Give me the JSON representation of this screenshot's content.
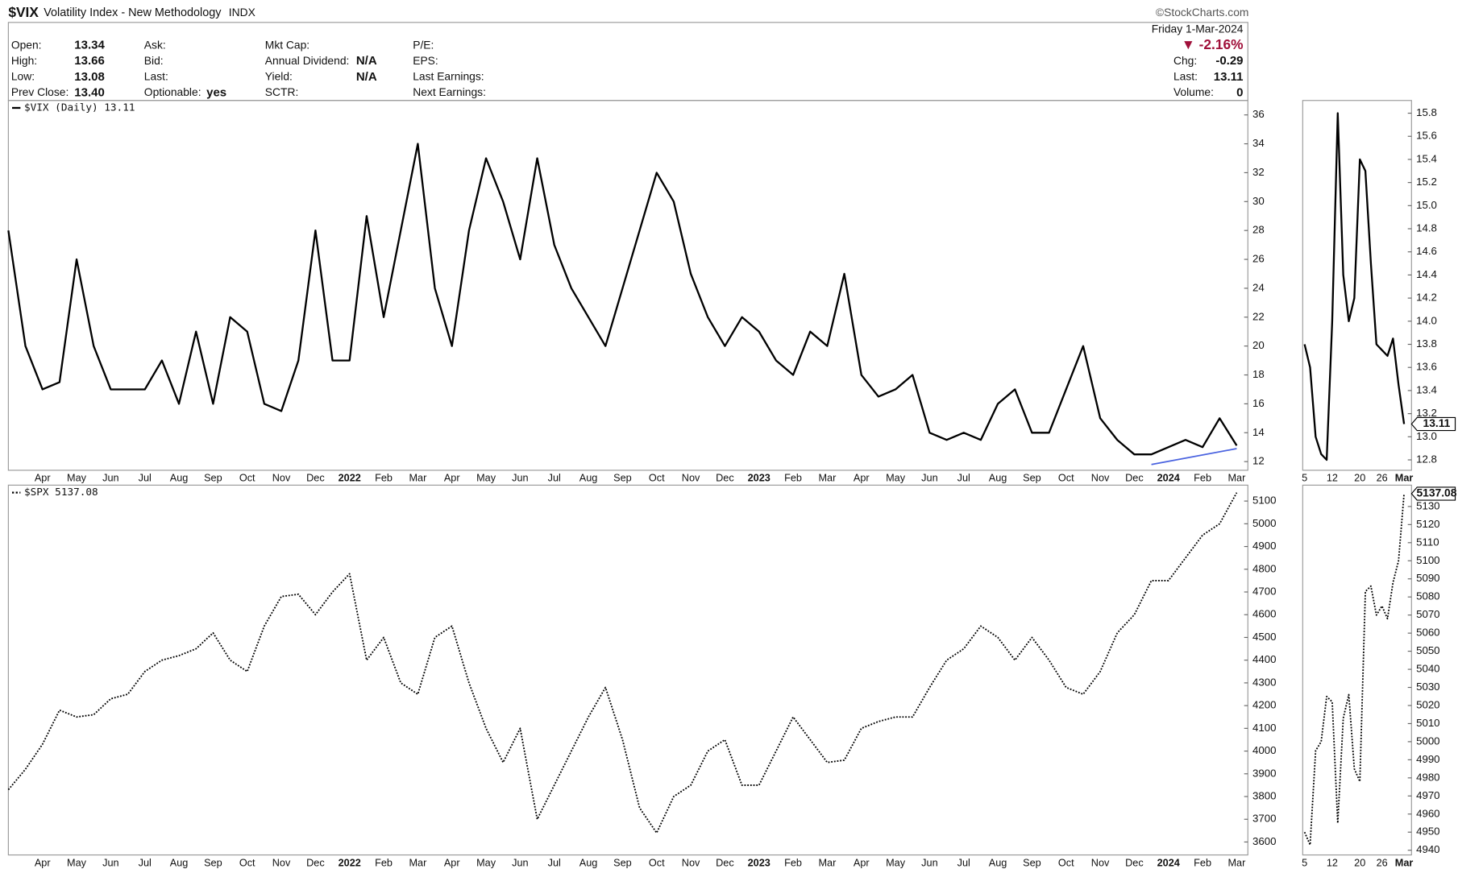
{
  "header": {
    "symbol": "$VIX",
    "name": "Volatility Index - New Methodology",
    "exchange": "INDX",
    "source": "©StockCharts.com",
    "date": "Friday  1-Mar-2024",
    "change_pct": "▼ -2.16%",
    "columns": [
      [
        [
          "Open:",
          "13.34"
        ],
        [
          "High:",
          "13.66"
        ],
        [
          "Low:",
          "13.08"
        ],
        [
          "Prev Close:",
          "13.40"
        ]
      ],
      [
        [
          "Ask:"
        ],
        [
          "Bid:"
        ],
        [
          "Last:"
        ],
        [
          "Optionable:",
          "yes"
        ]
      ],
      [
        [
          "Mkt Cap:"
        ],
        [
          "Annual Dividend:",
          "N/A"
        ],
        [
          "Yield:",
          "N/A"
        ],
        [
          "SCTR:"
        ]
      ],
      [
        [
          "P/E:"
        ],
        [
          "EPS:"
        ],
        [
          "Last Earnings:"
        ],
        [
          "Next Earnings:"
        ]
      ]
    ],
    "right": [
      [
        "Chg:",
        "-0.29"
      ],
      [
        "Last:",
        "13.11"
      ],
      [
        "Volume:",
        "0"
      ]
    ]
  },
  "chart_data": [
    {
      "type": "line",
      "legend": true,
      "categories": [
        null,
        null,
        "Apr",
        null,
        "May",
        null,
        "Jun",
        null,
        "Jul",
        null,
        "Aug",
        null,
        "Sep",
        null,
        "Oct",
        null,
        "Nov",
        null,
        "Dec",
        null,
        "2022",
        null,
        "Feb",
        null,
        "Mar",
        null,
        "Apr",
        null,
        "May",
        null,
        "Jun",
        null,
        "Jul",
        null,
        "Aug",
        null,
        "Sep",
        null,
        "Oct",
        null,
        "Nov",
        null,
        "Dec",
        null,
        "2023",
        null,
        "Feb",
        null,
        "Mar",
        null,
        "Apr",
        null,
        "May",
        null,
        "Jun",
        null,
        "Jul",
        null,
        "Aug",
        null,
        "Sep",
        null,
        "Oct",
        null,
        "Nov",
        null,
        "Dec",
        null,
        "2024",
        null,
        "Feb",
        null,
        "Mar"
      ],
      "series": [
        {
          "name": "$VIX (Daily) 13.11",
          "color": "#000000",
          "line_style": "solid",
          "values": [
            28,
            20,
            17,
            17.5,
            26,
            20,
            17,
            17,
            17,
            19,
            16,
            21,
            16,
            22,
            21,
            16,
            15.5,
            19,
            28,
            19,
            19,
            29,
            22,
            28,
            34,
            24,
            20,
            28,
            33,
            30,
            26,
            33,
            27,
            24,
            22,
            20,
            24,
            28,
            32,
            30,
            25,
            22,
            20,
            22,
            21,
            19,
            18,
            21,
            20,
            25,
            18,
            16.5,
            17,
            18,
            14,
            13.5,
            14,
            13.5,
            16,
            17,
            14,
            14,
            17,
            20,
            15,
            13.5,
            12.5,
            12.5,
            13,
            13.5,
            13,
            15,
            13.11
          ]
        }
      ],
      "trendline": {
        "color": "#4a63e0",
        "x": [
          67,
          72
        ],
        "values": [
          11.8,
          12.9
        ]
      },
      "ylim": [
        11.4,
        37
      ],
      "yticks": [
        12,
        14,
        16,
        18,
        20,
        22,
        24,
        26,
        28,
        30,
        32,
        34,
        36
      ],
      "grid": false
    },
    {
      "type": "line",
      "legend": false,
      "last_value_box": true,
      "categories": [
        "5",
        null,
        null,
        null,
        null,
        "12",
        null,
        null,
        null,
        null,
        "20",
        null,
        null,
        null,
        "26",
        null,
        null,
        null,
        "Mar"
      ],
      "series": [
        {
          "color": "#000000",
          "line_style": "solid",
          "values": [
            13.8,
            13.6,
            13.0,
            12.85,
            12.8,
            14.0,
            15.8,
            14.4,
            14.0,
            14.2,
            15.4,
            15.3,
            14.5,
            13.8,
            13.75,
            13.7,
            13.85,
            13.45,
            13.11
          ]
        }
      ],
      "ylim": [
        12.71,
        15.91
      ],
      "yticks": [
        12.8,
        {
          "value": 13,
          "label": "13.0"
        },
        13.2,
        13.4,
        13.6,
        13.8,
        {
          "value": 14,
          "label": "14.0"
        },
        14.2,
        14.4,
        14.6,
        14.8,
        {
          "value": 15,
          "label": "15.0"
        },
        15.2,
        15.4,
        15.6,
        15.8
      ],
      "grid": false
    },
    {
      "type": "line",
      "legend": true,
      "categories": [
        null,
        null,
        "Apr",
        null,
        "May",
        null,
        "Jun",
        null,
        "Jul",
        null,
        "Aug",
        null,
        "Sep",
        null,
        "Oct",
        null,
        "Nov",
        null,
        "Dec",
        null,
        "2022",
        null,
        "Feb",
        null,
        "Mar",
        null,
        "Apr",
        null,
        "May",
        null,
        "Jun",
        null,
        "Jul",
        null,
        "Aug",
        null,
        "Sep",
        null,
        "Oct",
        null,
        "Nov",
        null,
        "Dec",
        null,
        "2023",
        null,
        "Feb",
        null,
        "Mar",
        null,
        "Apr",
        null,
        "May",
        null,
        "Jun",
        null,
        "Jul",
        null,
        "Aug",
        null,
        "Sep",
        null,
        "Oct",
        null,
        "Nov",
        null,
        "Dec",
        null,
        "2024",
        null,
        "Feb",
        null,
        "Mar"
      ],
      "series": [
        {
          "name": "$SPX 5137.08",
          "color": "#000000",
          "line_style": "dotted",
          "values": [
            3830,
            3920,
            4030,
            4180,
            4150,
            4160,
            4230,
            4250,
            4350,
            4400,
            4420,
            4450,
            4520,
            4400,
            4350,
            4550,
            4680,
            4690,
            4600,
            4700,
            4780,
            4400,
            4500,
            4300,
            4250,
            4500,
            4550,
            4300,
            4100,
            3950,
            4100,
            3700,
            3850,
            4000,
            4150,
            4280,
            4050,
            3750,
            3640,
            3800,
            3850,
            4000,
            4050,
            3850,
            3850,
            4000,
            4150,
            4050,
            3950,
            3960,
            4100,
            4130,
            4150,
            4150,
            4280,
            4400,
            4450,
            4550,
            4500,
            4400,
            4500,
            4400,
            4280,
            4250,
            4350,
            4520,
            4600,
            4750,
            4750,
            4850,
            4950,
            5000,
            5137.08
          ]
        }
      ],
      "ylim": [
        3543,
        5170
      ],
      "yticks": [
        3600,
        3700,
        3800,
        3900,
        4000,
        4100,
        4200,
        4300,
        4400,
        4500,
        4600,
        4700,
        4800,
        4900,
        5000,
        5100
      ],
      "grid": false
    },
    {
      "type": "line",
      "legend": false,
      "last_value_box": true,
      "categories": [
        "5",
        null,
        null,
        null,
        null,
        "12",
        null,
        null,
        null,
        null,
        "20",
        null,
        null,
        null,
        "26",
        null,
        null,
        null,
        "Mar"
      ],
      "series": [
        {
          "color": "#000000",
          "line_style": "dotted",
          "values": [
            4950,
            4943,
            4995,
            5000,
            5025,
            5022,
            4955,
            5013,
            5026,
            4985,
            4978,
            5083,
            5086,
            5070,
            5075,
            5068,
            5088,
            5100,
            5137.08
          ]
        }
      ],
      "ylim": [
        4937.4,
        5141.8
      ],
      "yticks": [
        4940,
        4950,
        4960,
        4970,
        4980,
        4990,
        5000,
        5010,
        5020,
        5030,
        5040,
        5050,
        5060,
        5070,
        5080,
        5090,
        5100,
        5110,
        5120,
        5130
      ],
      "grid": false
    }
  ]
}
